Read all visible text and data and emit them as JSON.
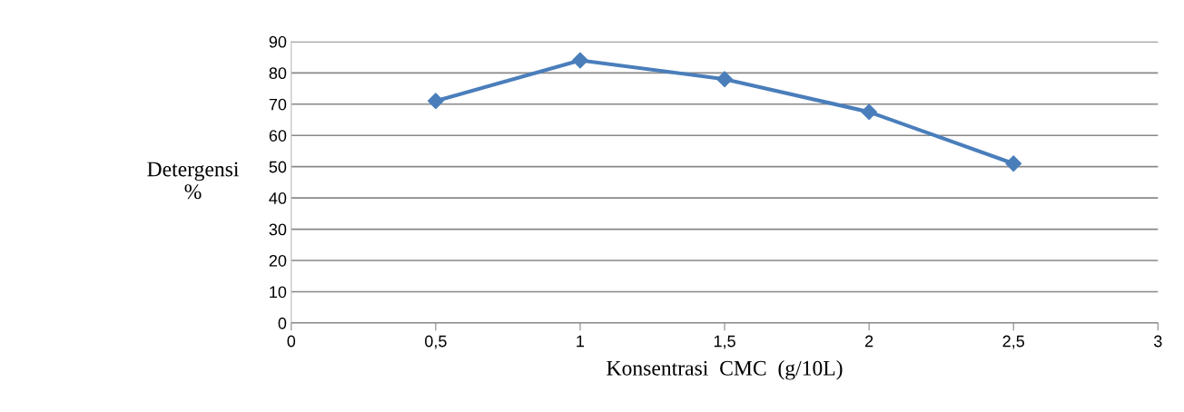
{
  "chart_data": {
    "type": "line",
    "xlabel": "Konsentrasi  CMC  (g/10L)",
    "ylabel": "Detergensi\n%",
    "x": [
      0.5,
      1,
      1.5,
      2,
      2.5
    ],
    "series": [
      {
        "color": "#4a7ebb",
        "values": [
          71,
          84,
          78,
          67.5,
          51
        ]
      }
    ],
    "xlim": [
      0,
      3
    ],
    "xticks": [
      0,
      {
        "value": 0.5,
        "label": "0,5"
      },
      1,
      {
        "value": 1.5,
        "label": "1,5"
      },
      2,
      {
        "value": 2.5,
        "label": "2,5"
      },
      3
    ],
    "ylim": [
      0,
      90
    ],
    "yticks": [
      0,
      10,
      20,
      30,
      40,
      50,
      60,
      70,
      80,
      90
    ],
    "grid": "y",
    "marker": "diamond",
    "line_style": "solid",
    "legend": false
  }
}
